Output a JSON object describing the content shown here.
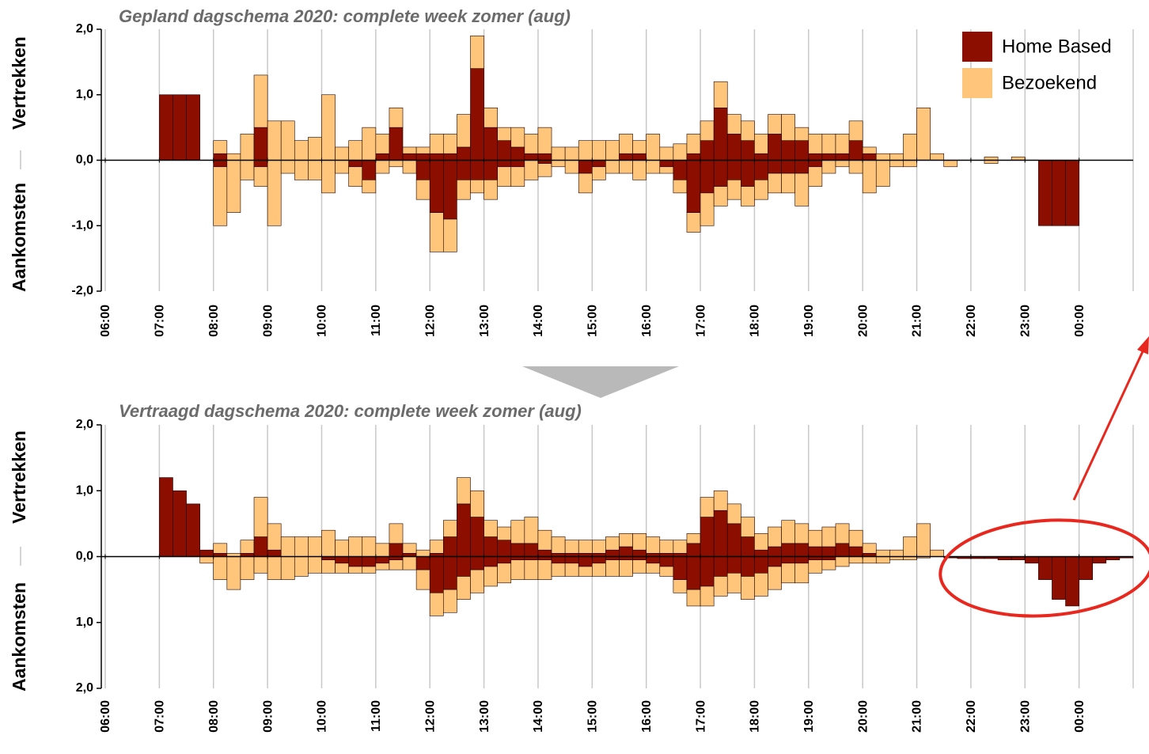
{
  "chart_data": [
    {
      "type": "bar",
      "title": "Gepland dagschema 2020: complete week zomer (aug)",
      "ylabel_up": "Vertrekken",
      "ylabel_down": "Aankomsten",
      "legend": "top-right",
      "grid": "x",
      "xlim": [
        6,
        25
      ],
      "ylim": [
        -2,
        2
      ],
      "yticks": [
        {
          "value": 2,
          "label": "2,0"
        },
        {
          "value": 1,
          "label": "1,0"
        },
        {
          "value": 0,
          "label": "0,0"
        },
        {
          "value": -1,
          "label": "-1,0"
        },
        {
          "value": -2,
          "label": "-2,0"
        }
      ],
      "xticks": [
        {
          "value": 6,
          "label": "06:00"
        },
        {
          "value": 7,
          "label": "07:00"
        },
        {
          "value": 8,
          "label": "08:00"
        },
        {
          "value": 9,
          "label": "09:00"
        },
        {
          "value": 10,
          "label": "10:00"
        },
        {
          "value": 11,
          "label": "11:00"
        },
        {
          "value": 12,
          "label": "12:00"
        },
        {
          "value": 13,
          "label": "13:00"
        },
        {
          "value": 14,
          "label": "14:00"
        },
        {
          "value": 15,
          "label": "15:00"
        },
        {
          "value": 16,
          "label": "16:00"
        },
        {
          "value": 17,
          "label": "17:00"
        },
        {
          "value": 18,
          "label": "18:00"
        },
        {
          "value": 19,
          "label": "19:00"
        },
        {
          "value": 20,
          "label": "20:00"
        },
        {
          "value": 21,
          "label": "21:00"
        },
        {
          "value": 22,
          "label": "22:00"
        },
        {
          "value": 23,
          "label": "23:00"
        },
        {
          "value": 24,
          "label": "00:00"
        }
      ],
      "x": [
        6,
        6.25,
        6.5,
        6.75,
        7,
        7.25,
        7.5,
        7.75,
        8,
        8.25,
        8.5,
        8.75,
        9,
        9.25,
        9.5,
        9.75,
        10,
        10.25,
        10.5,
        10.75,
        11,
        11.25,
        11.5,
        11.75,
        12,
        12.25,
        12.5,
        12.75,
        13,
        13.25,
        13.5,
        13.75,
        14,
        14.25,
        14.5,
        14.75,
        15,
        15.25,
        15.5,
        15.75,
        16,
        16.25,
        16.5,
        16.75,
        17,
        17.25,
        17.5,
        17.75,
        18,
        18.25,
        18.5,
        18.75,
        19,
        19.25,
        19.5,
        19.75,
        20,
        20.25,
        20.5,
        20.75,
        21,
        21.25,
        21.5,
        21.75,
        22,
        22.25,
        22.5,
        22.75,
        23,
        23.25,
        23.5,
        23.75,
        24,
        24.25,
        24.5,
        24.75
      ],
      "series": [
        {
          "name": "Home Based",
          "color": "#8b0e00",
          "vertrekken": [
            0,
            0,
            0,
            0,
            1,
            1,
            1,
            0,
            0.1,
            0,
            0,
            0.5,
            0,
            0,
            0,
            0,
            0,
            0,
            0,
            0,
            0.1,
            0.5,
            0.1,
            0.1,
            0.1,
            0.1,
            0.2,
            1.4,
            0.5,
            0.3,
            0.2,
            0.1,
            0.1,
            0,
            0,
            0,
            0,
            0,
            0.1,
            0.1,
            0,
            0,
            0,
            0.1,
            0.3,
            0.8,
            0.4,
            0.3,
            0.1,
            0.4,
            0.3,
            0.3,
            0.1,
            0.1,
            0.1,
            0.3,
            0.1,
            0,
            0,
            0,
            0,
            0,
            0,
            0,
            0,
            0,
            0,
            0,
            0,
            0,
            0,
            0,
            0,
            0,
            0,
            0
          ],
          "aankomsten": [
            0,
            0,
            0,
            0,
            0,
            0,
            0,
            0,
            -0.1,
            0,
            0,
            -0.1,
            0,
            0,
            0,
            0,
            0,
            0,
            -0.1,
            -0.3,
            0,
            0,
            0,
            -0.3,
            -0.8,
            -0.9,
            -0.3,
            -0.3,
            -0.3,
            -0.1,
            -0.1,
            0,
            -0.05,
            0,
            0,
            -0.2,
            -0.1,
            0,
            0,
            0,
            0,
            -0.1,
            -0.3,
            -0.8,
            -0.5,
            -0.4,
            -0.3,
            -0.4,
            -0.3,
            -0.2,
            -0.2,
            -0.2,
            -0.1,
            0,
            0,
            0,
            0,
            0,
            0,
            0,
            0,
            0,
            0,
            0,
            0,
            0,
            0,
            0,
            0,
            -1,
            -1,
            -1,
            0,
            0,
            0,
            0
          ]
        },
        {
          "name": "Bezoekend",
          "color": "#ffc57a",
          "vertrekken": [
            0,
            0,
            0,
            0,
            0,
            0,
            0,
            0,
            0.2,
            0.1,
            0.4,
            0.8,
            0.6,
            0.6,
            0.3,
            0.35,
            1,
            0.2,
            0.3,
            0.5,
            0.3,
            0.3,
            0.1,
            0.1,
            0.3,
            0.3,
            0.5,
            0.5,
            0.3,
            0.2,
            0.3,
            0.3,
            0.4,
            0.2,
            0.2,
            0.3,
            0.3,
            0.3,
            0.3,
            0.2,
            0.4,
            0.2,
            0.25,
            0.3,
            0.3,
            0.4,
            0.3,
            0.3,
            0.3,
            0.3,
            0.4,
            0.2,
            0.3,
            0.3,
            0.3,
            0.3,
            0.1,
            0.1,
            0.1,
            0.4,
            0.8,
            0.1,
            0,
            0,
            0,
            0.05,
            0,
            0.05,
            0,
            0,
            0,
            0,
            0,
            0,
            0,
            0
          ],
          "aankomsten": [
            0,
            0,
            0,
            0,
            0,
            0,
            0,
            0,
            -0.9,
            -0.8,
            -0.3,
            -0.3,
            -1,
            -0.2,
            -0.3,
            -0.3,
            -0.5,
            -0.2,
            -0.3,
            -0.2,
            -0.2,
            -0.1,
            -0.2,
            -0.3,
            -0.6,
            -0.5,
            -0.3,
            -0.2,
            -0.3,
            -0.3,
            -0.3,
            -0.3,
            -0.2,
            -0.1,
            -0.2,
            -0.3,
            -0.2,
            -0.2,
            -0.2,
            -0.3,
            -0.2,
            -0.1,
            -0.2,
            -0.3,
            -0.5,
            -0.3,
            -0.3,
            -0.3,
            -0.3,
            -0.3,
            -0.3,
            -0.5,
            -0.3,
            -0.2,
            -0.1,
            -0.2,
            -0.5,
            -0.4,
            -0.1,
            -0.1,
            0,
            0,
            -0.1,
            0,
            0,
            -0.05,
            0,
            0,
            0,
            0,
            0,
            0,
            0,
            0,
            0,
            0
          ]
        }
      ]
    },
    {
      "type": "bar",
      "title": "Vertraagd dagschema 2020: complete week zomer (aug)",
      "ylabel_up": "Vertrekken",
      "ylabel_down": "Aankomsten",
      "grid": "x",
      "xlim": [
        6,
        25
      ],
      "ylim": [
        -2,
        2
      ],
      "yticks": [
        {
          "value": 2,
          "label": "2,0"
        },
        {
          "value": 1,
          "label": "1,0"
        },
        {
          "value": 0,
          "label": "0,0"
        },
        {
          "value": -1,
          "label": "1,0"
        },
        {
          "value": -2,
          "label": "2,0"
        }
      ],
      "xticks": [
        {
          "value": 6,
          "label": "06:00"
        },
        {
          "value": 7,
          "label": "07:00"
        },
        {
          "value": 8,
          "label": "08:00"
        },
        {
          "value": 9,
          "label": "09:00"
        },
        {
          "value": 10,
          "label": "10:00"
        },
        {
          "value": 11,
          "label": "11:00"
        },
        {
          "value": 12,
          "label": "12:00"
        },
        {
          "value": 13,
          "label": "13:00"
        },
        {
          "value": 14,
          "label": "14:00"
        },
        {
          "value": 15,
          "label": "15:00"
        },
        {
          "value": 16,
          "label": "16:00"
        },
        {
          "value": 17,
          "label": "17:00"
        },
        {
          "value": 18,
          "label": "18:00"
        },
        {
          "value": 19,
          "label": "19:00"
        },
        {
          "value": 20,
          "label": "20:00"
        },
        {
          "value": 21,
          "label": "21:00"
        },
        {
          "value": 22,
          "label": "22:00"
        },
        {
          "value": 23,
          "label": "23:00"
        },
        {
          "value": 24,
          "label": "00:00"
        }
      ],
      "x": [
        6,
        6.25,
        6.5,
        6.75,
        7,
        7.25,
        7.5,
        7.75,
        8,
        8.25,
        8.5,
        8.75,
        9,
        9.25,
        9.5,
        9.75,
        10,
        10.25,
        10.5,
        10.75,
        11,
        11.25,
        11.5,
        11.75,
        12,
        12.25,
        12.5,
        12.75,
        13,
        13.25,
        13.5,
        13.75,
        14,
        14.25,
        14.5,
        14.75,
        15,
        15.25,
        15.5,
        15.75,
        16,
        16.25,
        16.5,
        16.75,
        17,
        17.25,
        17.5,
        17.75,
        18,
        18.25,
        18.5,
        18.75,
        19,
        19.25,
        19.5,
        19.75,
        20,
        20.25,
        20.5,
        20.75,
        21,
        21.25,
        21.5,
        21.75,
        22,
        22.25,
        22.5,
        22.75,
        23,
        23.25,
        23.5,
        23.75,
        24,
        24.25,
        24.5,
        24.75
      ],
      "series": [
        {
          "color": "#8b0e00",
          "vertrekken": [
            0,
            0,
            0,
            0,
            1.2,
            1,
            0.8,
            0.1,
            0.05,
            0,
            0.05,
            0.3,
            0.1,
            0,
            0,
            0,
            0,
            0,
            0,
            0,
            0,
            0.2,
            0.05,
            0,
            0.05,
            0.3,
            0.8,
            0.6,
            0.3,
            0.25,
            0.2,
            0.2,
            0.1,
            0.05,
            0.05,
            0.05,
            0.05,
            0.1,
            0.15,
            0.1,
            0.05,
            0.05,
            0.05,
            0.2,
            0.6,
            0.7,
            0.5,
            0.3,
            0.1,
            0.15,
            0.2,
            0.2,
            0.15,
            0.15,
            0.2,
            0.15,
            0.05,
            0,
            0,
            0,
            0,
            0,
            0,
            0,
            0,
            0,
            0,
            0,
            0,
            0,
            0,
            0,
            0,
            0,
            0,
            0
          ],
          "aankomsten": [
            0,
            0,
            0,
            0,
            0,
            0,
            0,
            0,
            0,
            0,
            0,
            0,
            0,
            0,
            0,
            0,
            -0.05,
            -0.1,
            -0.15,
            -0.15,
            -0.1,
            -0.05,
            0,
            -0.2,
            -0.55,
            -0.5,
            -0.3,
            -0.2,
            -0.15,
            -0.1,
            -0.05,
            -0.05,
            -0.05,
            -0.1,
            -0.1,
            -0.15,
            -0.1,
            -0.05,
            -0.05,
            -0.05,
            -0.1,
            -0.15,
            -0.35,
            -0.5,
            -0.45,
            -0.3,
            -0.25,
            -0.3,
            -0.25,
            -0.15,
            -0.1,
            -0.1,
            -0.05,
            -0.05,
            0,
            0,
            0,
            0,
            0,
            0,
            0,
            0,
            -0.02,
            -0.03,
            -0.03,
            -0.03,
            -0.05,
            -0.05,
            -0.1,
            -0.35,
            -0.65,
            -0.75,
            -0.35,
            -0.1,
            -0.05,
            -0.02
          ]
        },
        {
          "color": "#ffc57a",
          "vertrekken": [
            0,
            0,
            0,
            0,
            0,
            0,
            0,
            0,
            0.15,
            0.05,
            0.2,
            0.6,
            0.4,
            0.3,
            0.3,
            0.3,
            0.4,
            0.25,
            0.3,
            0.3,
            0.2,
            0.3,
            0.15,
            0.1,
            0.2,
            0.25,
            0.4,
            0.4,
            0.25,
            0.2,
            0.35,
            0.4,
            0.3,
            0.25,
            0.2,
            0.2,
            0.2,
            0.2,
            0.2,
            0.25,
            0.25,
            0.2,
            0.2,
            0.15,
            0.3,
            0.3,
            0.3,
            0.3,
            0.25,
            0.3,
            0.35,
            0.3,
            0.25,
            0.3,
            0.3,
            0.25,
            0.15,
            0.1,
            0.1,
            0.3,
            0.5,
            0.1,
            0,
            0,
            0,
            0,
            0,
            0,
            0,
            0,
            0,
            0,
            0,
            0,
            0,
            0
          ],
          "aankomsten": [
            0,
            0,
            0,
            0,
            0,
            0,
            0,
            -0.1,
            -0.35,
            -0.5,
            -0.35,
            -0.25,
            -0.35,
            -0.35,
            -0.3,
            -0.25,
            -0.2,
            -0.15,
            -0.1,
            -0.1,
            -0.1,
            -0.15,
            -0.2,
            -0.3,
            -0.35,
            -0.35,
            -0.35,
            -0.35,
            -0.3,
            -0.3,
            -0.3,
            -0.3,
            -0.3,
            -0.2,
            -0.2,
            -0.15,
            -0.2,
            -0.25,
            -0.25,
            -0.2,
            -0.15,
            -0.15,
            -0.2,
            -0.25,
            -0.3,
            -0.3,
            -0.3,
            -0.35,
            -0.35,
            -0.35,
            -0.3,
            -0.3,
            -0.2,
            -0.15,
            -0.15,
            -0.1,
            -0.1,
            -0.1,
            -0.05,
            -0.05,
            -0.02,
            0,
            0,
            0,
            0,
            0,
            0,
            0,
            0,
            0,
            0,
            0,
            0,
            0,
            0,
            0
          ]
        }
      ]
    }
  ]
}
